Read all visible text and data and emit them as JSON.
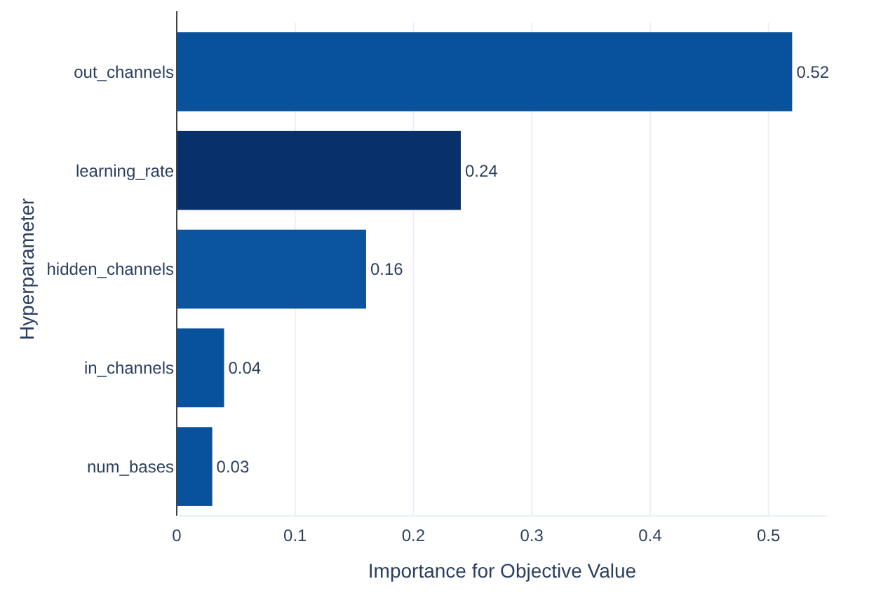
{
  "chart_data": {
    "type": "bar",
    "orientation": "horizontal",
    "categories": [
      "out_channels",
      "learning_rate",
      "hidden_channels",
      "in_channels",
      "num_bases"
    ],
    "values": [
      0.52,
      0.24,
      0.16,
      0.04,
      0.03
    ],
    "colors": [
      "#08519c",
      "#08306b",
      "#0b559f",
      "#08519c",
      "#08519c"
    ],
    "xlim": [
      0,
      0.55
    ],
    "xticks": [
      0,
      0.1,
      0.2,
      0.3,
      0.4,
      0.5
    ],
    "xlabel": "Importance for Objective Value",
    "ylabel": "Hyperparameter",
    "grid": "x",
    "data_labels": true
  }
}
